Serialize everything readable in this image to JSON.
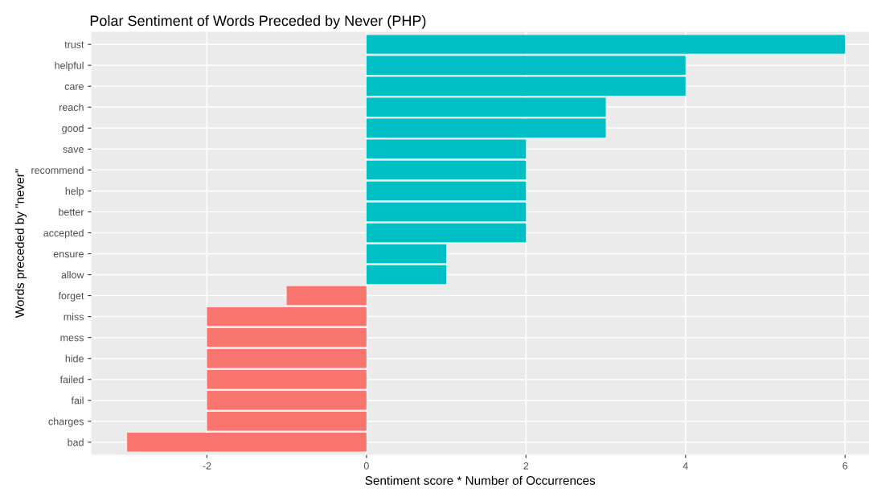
{
  "chart_data": {
    "type": "bar",
    "orientation": "horizontal",
    "title": "Polar Sentiment of Words Preceded by Never (PHP)",
    "xlabel": "Sentiment score * Number of Occurrences",
    "ylabel": "Words preceded by \"never\"",
    "categories": [
      "trust",
      "helpful",
      "care",
      "reach",
      "good",
      "save",
      "recommend",
      "help",
      "better",
      "accepted",
      "ensure",
      "allow",
      "forget",
      "miss",
      "mess",
      "hide",
      "failed",
      "fail",
      "charges",
      "bad"
    ],
    "values": [
      6,
      4,
      4,
      3,
      3,
      2,
      2,
      2,
      2,
      2,
      1,
      1,
      -1,
      -2,
      -2,
      -2,
      -2,
      -2,
      -2,
      -3
    ],
    "colors": [
      "#00bfc4",
      "#00bfc4",
      "#00bfc4",
      "#00bfc4",
      "#00bfc4",
      "#00bfc4",
      "#00bfc4",
      "#00bfc4",
      "#00bfc4",
      "#00bfc4",
      "#00bfc4",
      "#00bfc4",
      "#f8766d",
      "#f8766d",
      "#f8766d",
      "#f8766d",
      "#f8766d",
      "#f8766d",
      "#f8766d",
      "#f8766d"
    ],
    "xlim": [
      -3.45,
      6.3
    ],
    "xticks": [
      {
        "value": -2,
        "label": "-2"
      },
      0,
      2,
      4,
      6
    ],
    "grid": true,
    "legend": false
  }
}
